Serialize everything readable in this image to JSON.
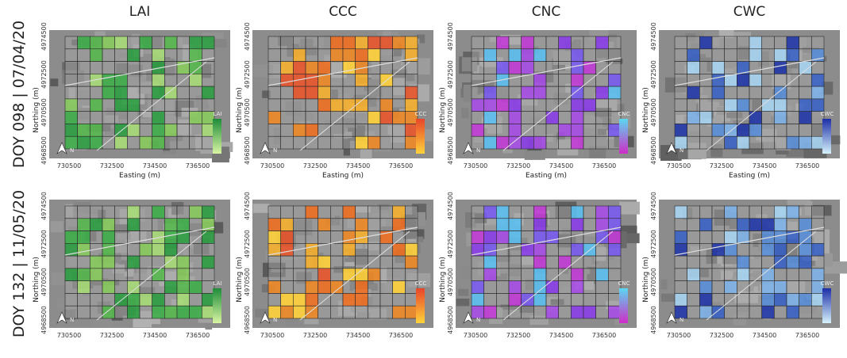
{
  "columns": [
    "LAI",
    "CCC",
    "CNC",
    "CWC"
  ],
  "rows": [
    {
      "label": "DOY 098 | 07/04/20"
    },
    {
      "label": "DOY 132 | 11/05/20"
    }
  ],
  "axes": {
    "x_label": "Easting (m)",
    "y_label": "Northing (m)",
    "x_ticks": [
      "730500",
      "732500",
      "734500",
      "736500"
    ],
    "y_ticks": [
      "4974500",
      "4972500",
      "4970500",
      "4968500"
    ]
  },
  "north_label": "N"
}
